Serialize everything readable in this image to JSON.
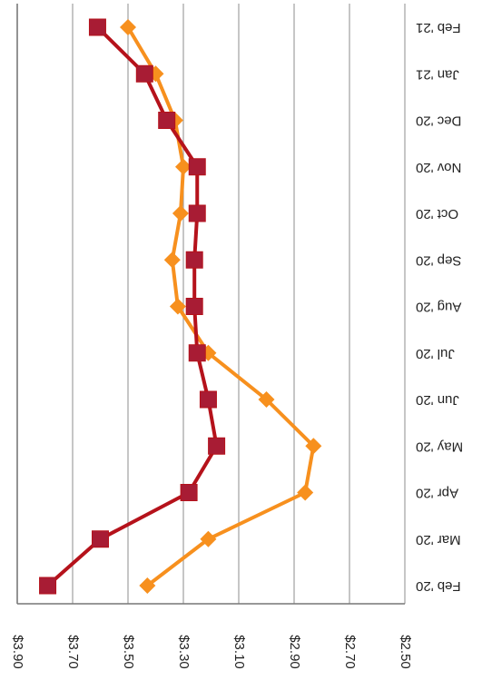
{
  "chart_data": {
    "type": "line",
    "categories": [
      "Feb '20",
      "Mar '20",
      "Apr '20",
      "May '20",
      "Jun '20",
      "Jul '20",
      "Aug '20",
      "Sep '20",
      "Oct '20",
      "Nov '20",
      "Dec '20",
      "Jan '21",
      "Feb '21"
    ],
    "series": [
      {
        "color": "#f7901e",
        "marker": "diamond",
        "values": [
          3.43,
          3.21,
          2.86,
          2.83,
          3.0,
          3.21,
          3.32,
          3.34,
          3.31,
          3.3,
          3.33,
          3.4,
          3.5
        ]
      },
      {
        "color": "#b5121b",
        "marker": "square",
        "values": [
          3.79,
          3.6,
          3.28,
          3.18,
          3.21,
          3.25,
          3.26,
          3.26,
          3.25,
          3.25,
          3.36,
          3.44,
          3.61
        ]
      }
    ],
    "ylim": [
      3.9,
      2.5
    ],
    "yticks": [
      {
        "value": 3.9,
        "label": "$3.90"
      },
      {
        "value": 3.7,
        "label": "$3.70"
      },
      {
        "value": 3.5,
        "label": "$3.50"
      },
      {
        "value": 3.3,
        "label": "$3.30"
      },
      {
        "value": 3.1,
        "label": "$3.10"
      },
      {
        "value": 2.9,
        "label": "$2.90"
      },
      {
        "value": 2.7,
        "label": "$2.70"
      },
      {
        "value": 2.5,
        "label": "$2.50"
      }
    ],
    "grid": true
  }
}
